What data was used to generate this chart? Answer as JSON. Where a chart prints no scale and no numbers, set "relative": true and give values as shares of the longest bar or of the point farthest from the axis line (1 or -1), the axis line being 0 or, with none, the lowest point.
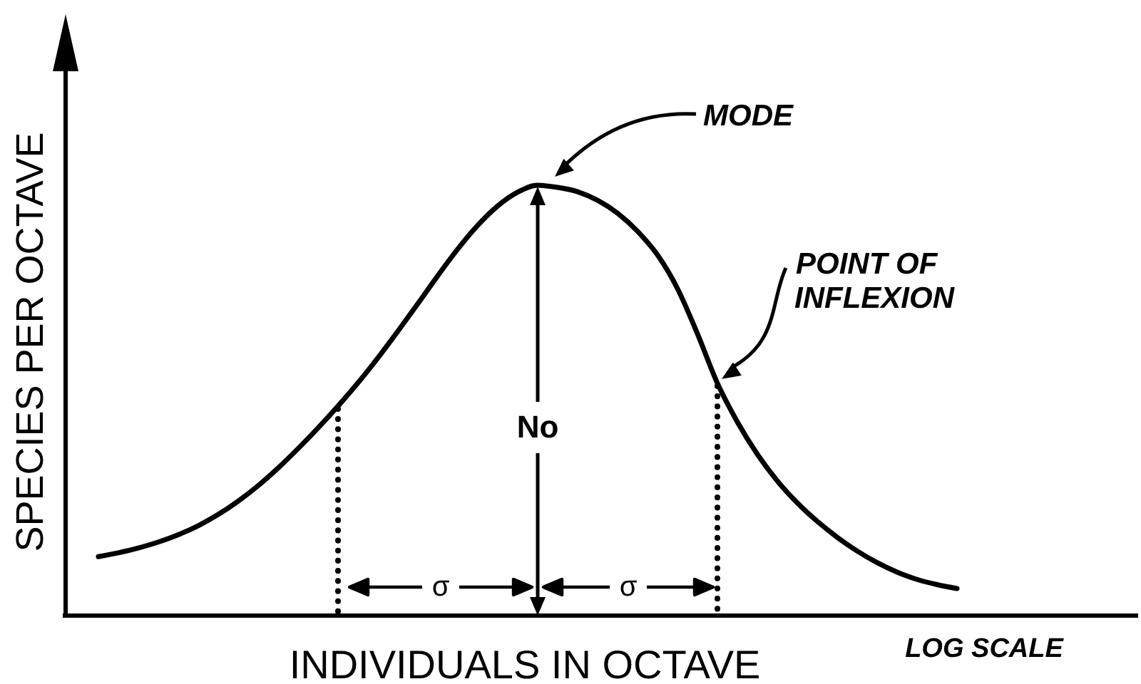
{
  "chart_data": {
    "type": "line",
    "relative": true,
    "xlabel": "INDIVIDUALS IN OCTAVE",
    "ylabel": "SPECIES PER OCTAVE",
    "categories": [
      null,
      null,
      null,
      null,
      null,
      null,
      null,
      null,
      null,
      null,
      null,
      null,
      null,
      null,
      null,
      null,
      null,
      null,
      null,
      null,
      null,
      null,
      null,
      null,
      null,
      null,
      null,
      null,
      null,
      null,
      null,
      null,
      null,
      null,
      null,
      null,
      null,
      null,
      null,
      null,
      null,
      null,
      null,
      null
    ],
    "series": [
      {
        "color": "#000000",
        "values": [
          0.137,
          0.146,
          0.157,
          0.171,
          0.188,
          0.209,
          0.235,
          0.266,
          0.302,
          0.343,
          0.388,
          0.436,
          0.487,
          0.541,
          0.599,
          0.661,
          0.725,
          0.79,
          0.852,
          0.907,
          0.952,
          0.984,
          1,
          0.995,
          0.985,
          0.965,
          0.935,
          0.893,
          0.838,
          0.76,
          0.655,
          0.54,
          0.45,
          0.375,
          0.313,
          0.262,
          0.219,
          0.182,
          0.15,
          0.123,
          0.101,
          0.084,
          0.072,
          0.063
        ]
      }
    ],
    "annotations": [
      "MODE",
      "POINT OF INFLEXION",
      "No",
      "σ",
      "σ",
      "LOG SCALE"
    ]
  }
}
